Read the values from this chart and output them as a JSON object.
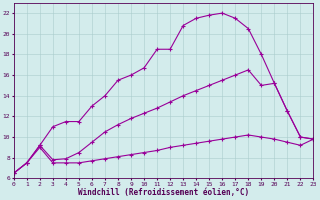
{
  "xlabel": "Windchill (Refroidissement éolien,°C)",
  "bg_color": "#d3ecec",
  "grid_color": "#aacccc",
  "line_color": "#990099",
  "xlim": [
    0,
    23
  ],
  "ylim": [
    6,
    23
  ],
  "xticks": [
    0,
    1,
    2,
    3,
    4,
    5,
    6,
    7,
    8,
    9,
    10,
    11,
    12,
    13,
    14,
    15,
    16,
    17,
    18,
    19,
    20,
    21,
    22,
    23
  ],
  "yticks": [
    6,
    8,
    10,
    12,
    14,
    16,
    18,
    20,
    22
  ],
  "curve_top_x": [
    0,
    1,
    2,
    3,
    4,
    5,
    6,
    7,
    8,
    9,
    10,
    11,
    12,
    13,
    14,
    15,
    16,
    17,
    18,
    19,
    20,
    21,
    22,
    23
  ],
  "curve_top_y": [
    6.5,
    7.5,
    9.2,
    11.0,
    11.5,
    11.5,
    13.0,
    14.0,
    15.5,
    16.0,
    16.7,
    18.5,
    18.5,
    20.8,
    21.5,
    21.8,
    22.0,
    21.5,
    20.5,
    18.0,
    15.2,
    12.5,
    10.0,
    9.8
  ],
  "curve_mid_x": [
    0,
    1,
    2,
    3,
    4,
    5,
    6,
    7,
    8,
    9,
    10,
    11,
    12,
    13,
    14,
    15,
    16,
    17,
    18,
    19,
    20,
    21,
    22,
    23
  ],
  "curve_mid_y": [
    6.5,
    7.5,
    9.2,
    7.8,
    7.9,
    8.5,
    9.5,
    10.5,
    11.2,
    11.8,
    12.3,
    12.8,
    13.4,
    14.0,
    14.5,
    15.0,
    15.5,
    16.0,
    16.5,
    15.0,
    15.2,
    12.5,
    10.0,
    9.8
  ],
  "curve_bot_x": [
    0,
    1,
    2,
    3,
    4,
    5,
    6,
    7,
    8,
    9,
    10,
    11,
    12,
    13,
    14,
    15,
    16,
    17,
    18,
    19,
    20,
    21,
    22,
    23
  ],
  "curve_bot_y": [
    6.5,
    7.5,
    9.0,
    7.5,
    7.5,
    7.5,
    7.7,
    7.9,
    8.1,
    8.3,
    8.5,
    8.7,
    9.0,
    9.2,
    9.4,
    9.6,
    9.8,
    10.0,
    10.2,
    10.0,
    9.8,
    9.5,
    9.2,
    9.8
  ],
  "tick_color": "#550055",
  "tick_fontsize": 4.5,
  "xlabel_fontsize": 5.5
}
